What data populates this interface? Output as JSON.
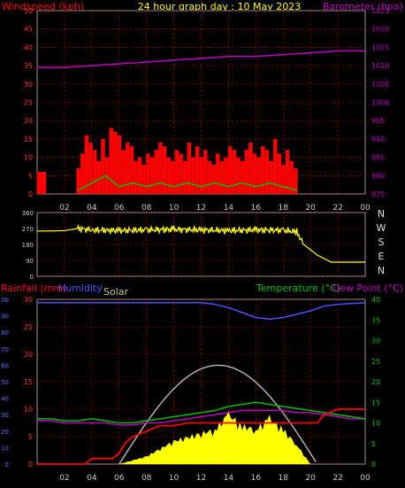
{
  "header": {
    "windspeed_label": "Windspeed (kph)",
    "title": "24 hour graph day : 10 May 2023",
    "barometer_label": "Barometer (hpa)"
  },
  "colors": {
    "wind": "#ff0000",
    "gust": "#00c000",
    "barometer": "#c000c0",
    "title": "#ffff00",
    "direction": "#ffff00",
    "rainfall": "#ff0000",
    "humidity": "#5050ff",
    "solar": "#ffff00",
    "solar_curve": "#b0b0b0",
    "temperature": "#00c000",
    "dewpoint": "#c000c0",
    "grid": "#ff0000"
  },
  "bottom_labels": {
    "rainfall": "Rainfall (mm)",
    "humidity": "Humidity",
    "solar": "Solar",
    "temperature": "Temperature (°C)",
    "dewpoint": "Dew Point (°C)"
  },
  "chart_data": [
    {
      "type": "bar",
      "title": "24 hour graph day : 10 May 2023",
      "ylabel": "Windspeed (kph)",
      "y2label": "Barometer (hpa)",
      "ylim": [
        0,
        50
      ],
      "y2lim": [
        975,
        1025
      ],
      "yticks": [
        "50",
        "45",
        "40",
        "35",
        "30",
        "25",
        "20",
        "15",
        "10",
        "5",
        "0"
      ],
      "y2ticks": [
        "1025",
        "1020",
        "1015",
        "1010",
        "1005",
        "1000",
        "995",
        "990",
        "985",
        "980",
        "975"
      ],
      "xticks": [
        "02",
        "04",
        "06",
        "08",
        "10",
        "12",
        "14",
        "16",
        "18",
        "20",
        "22",
        "00"
      ],
      "grid": true,
      "series": [
        {
          "name": "Windspeed (kph)",
          "type": "bar",
          "x": [
            0.1,
            0.3,
            0.5,
            3.0,
            3.3,
            3.6,
            3.9,
            4.2,
            4.5,
            4.8,
            5.1,
            5.4,
            5.7,
            6.0,
            6.3,
            6.6,
            6.9,
            7.2,
            7.5,
            7.8,
            8.1,
            8.4,
            8.7,
            9.0,
            9.3,
            9.6,
            9.9,
            10.2,
            10.5,
            10.8,
            11.1,
            11.4,
            11.7,
            12.0,
            12.3,
            12.6,
            12.9,
            13.2,
            13.5,
            13.8,
            14.1,
            14.4,
            14.7,
            15.0,
            15.3,
            15.6,
            15.9,
            16.2,
            16.5,
            16.8,
            17.1,
            17.4,
            17.7,
            18.0,
            18.3,
            18.6,
            18.9
          ],
          "values": [
            6,
            6,
            6,
            7,
            11,
            16,
            14,
            12,
            9,
            15,
            10,
            18,
            17,
            16,
            12,
            14,
            13,
            9,
            10,
            8,
            11,
            10,
            12,
            14,
            13,
            10,
            9,
            12,
            11,
            9,
            14,
            10,
            13,
            10,
            12,
            9,
            8,
            11,
            9,
            10,
            13,
            12,
            10,
            9,
            12,
            14,
            11,
            10,
            13,
            12,
            9,
            15,
            11,
            8,
            12,
            9,
            7
          ]
        },
        {
          "name": "Gust",
          "type": "line",
          "x": [
            3,
            4,
            5,
            6,
            7,
            8,
            9,
            10,
            11,
            12,
            13,
            14,
            15,
            16,
            17,
            18,
            19
          ],
          "values": [
            1,
            3,
            5,
            2,
            3,
            2,
            3,
            2,
            3,
            2,
            3,
            2,
            3,
            2,
            3,
            2,
            1
          ]
        },
        {
          "name": "Barometer (hpa)",
          "type": "line",
          "x": [
            0,
            2,
            4,
            6,
            8,
            10,
            12,
            14,
            16,
            18,
            20,
            22,
            24
          ],
          "values": [
            1009.5,
            1009.5,
            1010,
            1010.5,
            1011,
            1011.5,
            1012,
            1012.5,
            1012.5,
            1013,
            1013.5,
            1014,
            1014
          ]
        }
      ]
    },
    {
      "type": "line",
      "ylim": [
        0,
        360
      ],
      "yticks": [
        "360",
        "270",
        "180",
        "90",
        "0"
      ],
      "compass": [
        "N",
        "W",
        "S",
        "E",
        "N"
      ],
      "grid": true,
      "series": [
        {
          "name": "Wind direction",
          "x": [
            0,
            2,
            3,
            4,
            6,
            8,
            10,
            12,
            14,
            16,
            18,
            19,
            19.5,
            20.5,
            21.5,
            24
          ],
          "values": [
            255,
            258,
            270,
            262,
            258,
            262,
            265,
            262,
            258,
            262,
            260,
            250,
            180,
            120,
            80,
            80
          ]
        }
      ]
    },
    {
      "type": "line",
      "ylabel": "Rainfall (mm)",
      "y2label": "Temperature (°C)",
      "ylim": [
        0,
        30
      ],
      "y2lim": [
        0,
        40
      ],
      "humidity_lim": [
        0,
        100
      ],
      "yticks_rain": [
        "30",
        "25",
        "20",
        "15",
        "10",
        "5",
        "0"
      ],
      "yticks_hum": [
        "100",
        "90",
        "80",
        "70",
        "60",
        "50",
        "40",
        "30",
        "20",
        "10",
        "0"
      ],
      "y2ticks": [
        "40",
        "35",
        "30",
        "25",
        "20",
        "15",
        "10",
        "5",
        "0"
      ],
      "xticks": [
        "02",
        "04",
        "06",
        "08",
        "10",
        "12",
        "14",
        "16",
        "18",
        "20",
        "22",
        "00"
      ],
      "grid": true,
      "series": [
        {
          "name": "Humidity",
          "x": [
            0,
            2,
            4,
            6,
            8,
            10,
            12,
            13,
            14,
            15,
            16,
            17,
            18,
            19,
            20,
            21,
            22,
            24
          ],
          "values": [
            98,
            98,
            98,
            98,
            98,
            98,
            98,
            97,
            95,
            92,
            89,
            88,
            89,
            91,
            93,
            96,
            97,
            98
          ]
        },
        {
          "name": "Temperature (°C)",
          "x": [
            0,
            1,
            2,
            3,
            4,
            5,
            6,
            7,
            8,
            9,
            10,
            11,
            12,
            13,
            14,
            15,
            16,
            17,
            18,
            19,
            20,
            21,
            22,
            23,
            24
          ],
          "values": [
            11,
            11,
            10.5,
            10.5,
            11,
            10.5,
            10,
            10,
            10.5,
            11,
            11.5,
            12,
            12.5,
            13,
            14,
            14.5,
            15,
            14.5,
            14,
            13.5,
            13,
            12.5,
            12,
            11.5,
            11
          ]
        },
        {
          "name": "Dew Point (°C)",
          "x": [
            0,
            1,
            2,
            3,
            4,
            5,
            6,
            7,
            8,
            9,
            10,
            11,
            12,
            13,
            14,
            15,
            16,
            17,
            18,
            19,
            20,
            21,
            22,
            23,
            24
          ],
          "values": [
            10.5,
            10.5,
            10,
            10,
            10,
            10,
            9.5,
            9.5,
            10,
            10,
            10.5,
            11,
            11.5,
            12,
            12.5,
            13,
            13,
            13,
            13,
            12.5,
            12.5,
            12,
            11.5,
            11,
            11
          ]
        },
        {
          "name": "Rainfall (mm)",
          "x": [
            0,
            3.5,
            4,
            5.5,
            6,
            6.5,
            7,
            8,
            9,
            10,
            11,
            12,
            20.5,
            21,
            22,
            24
          ],
          "values": [
            0,
            0,
            1,
            1,
            2,
            4,
            5,
            6,
            7,
            7,
            7.5,
            7.5,
            7.5,
            9,
            10,
            10
          ]
        },
        {
          "name": "Solar",
          "x": [
            6,
            8,
            10,
            12,
            13,
            14,
            15,
            16,
            17,
            18,
            19,
            20
          ],
          "values": [
            0,
            2,
            6,
            8,
            9,
            13,
            10,
            9,
            12,
            9,
            5,
            0
          ]
        },
        {
          "name": "Solar curve",
          "x": [
            6,
            8,
            10,
            12,
            13.5,
            15,
            17,
            19,
            20.5
          ],
          "values": [
            0,
            8,
            17,
            22,
            24,
            22,
            16,
            6,
            0
          ]
        }
      ]
    }
  ]
}
